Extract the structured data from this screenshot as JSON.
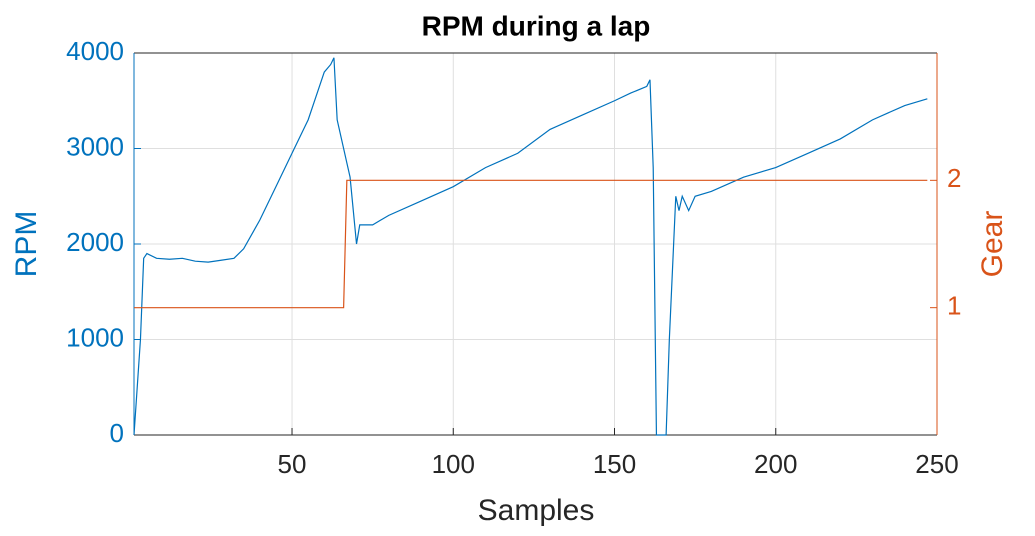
{
  "chart_data": {
    "type": "line",
    "title": "RPM during a lap",
    "x_label": "Samples",
    "y_label": "RPM",
    "y2_label": "Gear",
    "x": [
      1,
      3,
      4,
      5,
      8,
      12,
      16,
      20,
      24,
      28,
      32,
      35,
      40,
      45,
      50,
      55,
      58,
      60,
      62,
      63,
      64,
      66,
      67,
      68,
      70,
      71,
      75,
      80,
      90,
      100,
      110,
      120,
      130,
      140,
      150,
      155,
      160,
      161,
      162,
      163,
      166,
      167,
      169,
      170,
      171,
      173,
      175,
      180,
      190,
      200,
      210,
      220,
      230,
      240,
      247
    ],
    "series": [
      {
        "name": "RPM",
        "color": "#0072BD",
        "values": [
          0,
          1000,
          1850,
          1900,
          1850,
          1840,
          1850,
          1820,
          1810,
          1830,
          1850,
          1950,
          2250,
          2600,
          2950,
          3300,
          3600,
          3800,
          3880,
          3950,
          3300,
          3000,
          2850,
          2700,
          2000,
          2200,
          2200,
          2300,
          2450,
          2600,
          2800,
          2950,
          3200,
          3350,
          3500,
          3580,
          3650,
          3720,
          2800,
          0,
          0,
          1000,
          2500,
          2350,
          2500,
          2350,
          2500,
          2550,
          2700,
          2800,
          2950,
          3100,
          3300,
          3450,
          3520
        ]
      },
      {
        "name": "Gear",
        "color": "#D95319",
        "axis": "y2",
        "values": [
          1,
          1,
          1,
          1,
          1,
          1,
          1,
          1,
          1,
          1,
          1,
          1,
          1,
          1,
          1,
          1,
          1,
          1,
          1,
          1,
          1,
          1,
          2,
          2,
          2,
          2,
          2,
          2,
          2,
          2,
          2,
          2,
          2,
          2,
          2,
          2,
          2,
          2,
          2,
          2,
          2,
          2,
          2,
          2,
          2,
          2,
          2,
          2,
          2,
          2,
          2,
          2,
          2,
          2,
          2
        ]
      }
    ],
    "xlim": [
      1,
      250
    ],
    "xticks": [
      50,
      100,
      150,
      200,
      250
    ],
    "ylim": [
      0,
      4000
    ],
    "yticks": [
      0,
      1000,
      2000,
      3000,
      4000
    ],
    "y2lim": [
      0,
      3
    ],
    "y2ticks": [
      1,
      2
    ],
    "grid": true
  }
}
